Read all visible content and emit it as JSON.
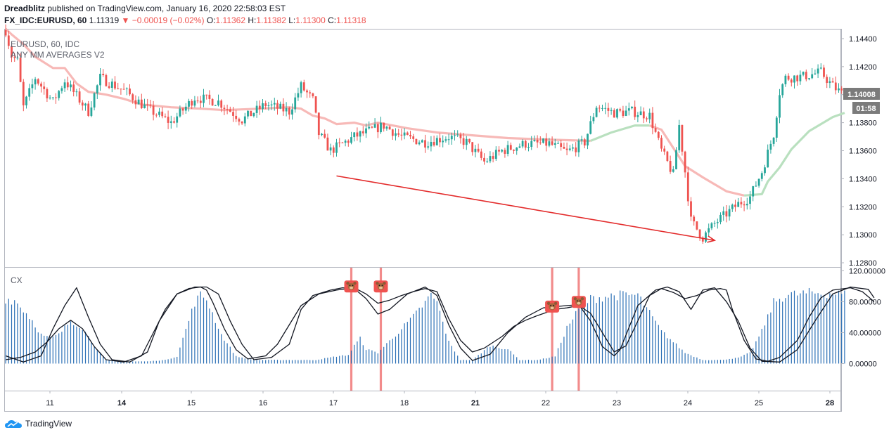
{
  "header": {
    "author": "Dreadblitz",
    "published_text": "published on TradingView.com, January 16, 2020 22:58:03 EST",
    "symbol": "FX_IDC:EURUSD, 60",
    "last": "1.11319",
    "change": "−0.00019 (−0.02%)",
    "o_label": "O:",
    "o_value": "1.11362",
    "h_label": "H:",
    "h_value": "1.11382",
    "l_label": "L:",
    "l_value": "1.11300",
    "c_label": "C:",
    "c_value": "1.11318"
  },
  "main_pane": {
    "symbol_label": "EURUSD, 60, IDC",
    "indicator_label": "ANY MM AVERAGES V2",
    "price_badge": "1.14008",
    "timer_badge": "01:58"
  },
  "lower_pane": {
    "label": "CX"
  },
  "footer": {
    "brand": "TradingView"
  },
  "colors": {
    "up": "#26a69a",
    "down": "#ef5350",
    "ma_down": "#f7b9b7",
    "ma_up": "#b9e0bf",
    "histogram": "#2a6fb5",
    "signal_line": "#f28b8b",
    "arrow": "#e32b2b",
    "badge_bg": "#7b7b7b"
  },
  "chart_data": [
    {
      "type": "candlestick",
      "y_ticks": [
        "1.14400",
        "1.14200",
        "1.14000",
        "1.13800",
        "1.13600",
        "1.13400",
        "1.13200",
        "1.13000",
        "1.12800"
      ],
      "ylim": [
        1.1277,
        1.1447
      ],
      "x_ticks": [
        "11",
        "14",
        "15",
        "16",
        "17",
        "18",
        "21",
        "22",
        "23",
        "24",
        "25",
        "28"
      ],
      "bold_x_ticks": [
        "14",
        "21",
        "28"
      ],
      "close_path": [
        [
          0,
          1.1446
        ],
        [
          2,
          1.1428
        ],
        [
          4,
          1.1424
        ],
        [
          6,
          1.1391
        ],
        [
          10,
          1.1412
        ],
        [
          16,
          1.1395
        ],
        [
          20,
          1.141
        ],
        [
          28,
          1.1388
        ],
        [
          32,
          1.1412
        ],
        [
          40,
          1.1403
        ],
        [
          48,
          1.139
        ],
        [
          56,
          1.138
        ],
        [
          64,
          1.1398
        ],
        [
          72,
          1.1395
        ],
        [
          80,
          1.1382
        ],
        [
          88,
          1.1393
        ],
        [
          96,
          1.1388
        ],
        [
          100,
          1.1406
        ],
        [
          104,
          1.1396
        ],
        [
          106,
          1.1372
        ],
        [
          110,
          1.136
        ],
        [
          118,
          1.137
        ],
        [
          128,
          1.1378
        ],
        [
          134,
          1.137
        ],
        [
          142,
          1.1366
        ],
        [
          150,
          1.137
        ],
        [
          156,
          1.1366
        ],
        [
          162,
          1.1352
        ],
        [
          168,
          1.136
        ],
        [
          176,
          1.1365
        ],
        [
          184,
          1.1365
        ],
        [
          190,
          1.1359
        ],
        [
          196,
          1.1366
        ],
        [
          200,
          1.1392
        ],
        [
          206,
          1.1387
        ],
        [
          212,
          1.1388
        ],
        [
          218,
          1.1385
        ],
        [
          222,
          1.136
        ],
        [
          226,
          1.1343
        ],
        [
          228,
          1.1378
        ],
        [
          230,
          1.1345
        ],
        [
          232,
          1.131
        ],
        [
          236,
          1.1298
        ],
        [
          240,
          1.1308
        ],
        [
          244,
          1.1315
        ],
        [
          248,
          1.1322
        ],
        [
          252,
          1.1327
        ],
        [
          256,
          1.1345
        ],
        [
          260,
          1.1372
        ],
        [
          262,
          1.1402
        ],
        [
          264,
          1.1412
        ],
        [
          270,
          1.1413
        ],
        [
          276,
          1.1416
        ],
        [
          280,
          1.1406
        ],
        [
          283,
          1.1401
        ]
      ],
      "ma_segments": [
        {
          "color": "down",
          "points": [
            [
              0,
              1.1447
            ],
            [
              2,
              1.1443
            ],
            [
              6,
              1.1436
            ],
            [
              10,
              1.1427
            ],
            [
              16,
              1.1419
            ],
            [
              20,
              1.1419
            ],
            [
              24,
              1.1408
            ],
            [
              28,
              1.1402
            ],
            [
              34,
              1.14
            ],
            [
              40,
              1.1397
            ],
            [
              46,
              1.1393
            ],
            [
              56,
              1.1391
            ],
            [
              66,
              1.139
            ],
            [
              74,
              1.1389
            ],
            [
              86,
              1.139
            ],
            [
              96,
              1.1391
            ],
            [
              100,
              1.139
            ],
            [
              104,
              1.1385
            ],
            [
              108,
              1.1383
            ],
            [
              112,
              1.1379
            ],
            [
              118,
              1.138
            ],
            [
              122,
              1.1378
            ],
            [
              126,
              1.138
            ],
            [
              136,
              1.1376
            ],
            [
              146,
              1.1373
            ],
            [
              158,
              1.1371
            ],
            [
              170,
              1.1369
            ],
            [
              182,
              1.1368
            ],
            [
              198,
              1.1367
            ]
          ]
        },
        {
          "color": "up",
          "points": [
            [
              198,
              1.1367
            ],
            [
              205,
              1.1373
            ],
            [
              213,
              1.1378
            ],
            [
              218,
              1.1378
            ]
          ]
        },
        {
          "color": "down",
          "points": [
            [
              218,
              1.1378
            ],
            [
              222,
              1.1375
            ],
            [
              226,
              1.1362
            ],
            [
              230,
              1.1349
            ],
            [
              236,
              1.1341
            ],
            [
              244,
              1.1331
            ],
            [
              250,
              1.1328
            ]
          ]
        },
        {
          "color": "up",
          "points": [
            [
              250,
              1.1328
            ],
            [
              256,
              1.1329
            ],
            [
              258,
              1.1338
            ],
            [
              262,
              1.1348
            ],
            [
              266,
              1.1361
            ],
            [
              272,
              1.1374
            ],
            [
              280,
              1.1384
            ],
            [
              284,
              1.1387
            ]
          ]
        }
      ],
      "annotation": {
        "type": "arrow",
        "from": [
          112,
          1.1342
        ],
        "to": [
          240,
          1.1296
        ]
      }
    },
    {
      "type": "oscillator",
      "y_ticks": [
        "120.00000",
        "80.00000",
        "40.00000",
        "0.00000"
      ],
      "ylim": [
        -35,
        124
      ],
      "histogram_path": [
        [
          0,
          90
        ],
        [
          3,
          88
        ],
        [
          6,
          75
        ],
        [
          9,
          60
        ],
        [
          12,
          40
        ],
        [
          15,
          35
        ],
        [
          18,
          40
        ],
        [
          22,
          60
        ],
        [
          26,
          50
        ],
        [
          30,
          25
        ],
        [
          34,
          5
        ],
        [
          40,
          3
        ],
        [
          48,
          3
        ],
        [
          54,
          5
        ],
        [
          58,
          10
        ],
        [
          60,
          35
        ],
        [
          64,
          85
        ],
        [
          66,
          95
        ],
        [
          68,
          90
        ],
        [
          70,
          70
        ],
        [
          73,
          40
        ],
        [
          78,
          10
        ],
        [
          84,
          5
        ],
        [
          95,
          5
        ],
        [
          105,
          5
        ],
        [
          112,
          10
        ],
        [
          116,
          12
        ],
        [
          118,
          25
        ],
        [
          120,
          35
        ],
        [
          122,
          20
        ],
        [
          126,
          15
        ],
        [
          132,
          40
        ],
        [
          138,
          65
        ],
        [
          142,
          85
        ],
        [
          144,
          95
        ],
        [
          146,
          85
        ],
        [
          150,
          30
        ],
        [
          154,
          5
        ],
        [
          158,
          5
        ],
        [
          164,
          25
        ],
        [
          170,
          20
        ],
        [
          174,
          5
        ],
        [
          180,
          5
        ],
        [
          186,
          10
        ],
        [
          190,
          50
        ],
        [
          194,
          75
        ],
        [
          198,
          90
        ],
        [
          206,
          95
        ],
        [
          214,
          95
        ],
        [
          218,
          70
        ],
        [
          222,
          45
        ],
        [
          226,
          30
        ],
        [
          230,
          15
        ],
        [
          236,
          5
        ],
        [
          242,
          5
        ],
        [
          248,
          8
        ],
        [
          252,
          15
        ],
        [
          256,
          45
        ],
        [
          260,
          85
        ],
        [
          264,
          95
        ],
        [
          272,
          98
        ],
        [
          280,
          98
        ],
        [
          284,
          96
        ]
      ],
      "line_a": [
        [
          0,
          5
        ],
        [
          5,
          8
        ],
        [
          10,
          15
        ],
        [
          14,
          28
        ],
        [
          18,
          45
        ],
        [
          22,
          56
        ],
        [
          26,
          45
        ],
        [
          30,
          22
        ],
        [
          34,
          5
        ],
        [
          40,
          2
        ],
        [
          46,
          10
        ],
        [
          50,
          40
        ],
        [
          54,
          70
        ],
        [
          58,
          90
        ],
        [
          62,
          97
        ],
        [
          66,
          99
        ],
        [
          68,
          95
        ],
        [
          70,
          80
        ],
        [
          74,
          45
        ],
        [
          78,
          18
        ],
        [
          82,
          6
        ],
        [
          88,
          10
        ],
        [
          92,
          25
        ],
        [
          96,
          50
        ],
        [
          100,
          75
        ],
        [
          106,
          90
        ],
        [
          112,
          95
        ],
        [
          118,
          98
        ],
        [
          122,
          90
        ],
        [
          126,
          78
        ],
        [
          130,
          82
        ],
        [
          134,
          88
        ],
        [
          138,
          93
        ],
        [
          142,
          97
        ],
        [
          146,
          93
        ],
        [
          150,
          58
        ],
        [
          154,
          30
        ],
        [
          158,
          15
        ],
        [
          162,
          20
        ],
        [
          168,
          35
        ],
        [
          172,
          48
        ],
        [
          176,
          56
        ],
        [
          180,
          62
        ],
        [
          186,
          70
        ],
        [
          190,
          72
        ],
        [
          194,
          75
        ],
        [
          198,
          65
        ],
        [
          202,
          40
        ],
        [
          206,
          15
        ],
        [
          210,
          23
        ],
        [
          214,
          55
        ],
        [
          218,
          88
        ],
        [
          222,
          97
        ],
        [
          226,
          92
        ],
        [
          230,
          84
        ],
        [
          234,
          88
        ],
        [
          238,
          95
        ],
        [
          242,
          97
        ],
        [
          244,
          95
        ],
        [
          246,
          70
        ],
        [
          250,
          30
        ],
        [
          254,
          6
        ],
        [
          258,
          3
        ],
        [
          262,
          8
        ],
        [
          268,
          30
        ],
        [
          272,
          60
        ],
        [
          276,
          85
        ],
        [
          280,
          95
        ],
        [
          286,
          98
        ],
        [
          290,
          93
        ],
        [
          294,
          80
        ]
      ],
      "line_b": [
        [
          0,
          10
        ],
        [
          6,
          2
        ],
        [
          12,
          10
        ],
        [
          16,
          45
        ],
        [
          20,
          75
        ],
        [
          24,
          98
        ],
        [
          28,
          60
        ],
        [
          32,
          25
        ],
        [
          36,
          5
        ],
        [
          42,
          2
        ],
        [
          48,
          15
        ],
        [
          52,
          55
        ],
        [
          58,
          90
        ],
        [
          64,
          99
        ],
        [
          68,
          99
        ],
        [
          72,
          90
        ],
        [
          76,
          55
        ],
        [
          80,
          25
        ],
        [
          84,
          5
        ],
        [
          90,
          8
        ],
        [
          96,
          25
        ],
        [
          100,
          70
        ],
        [
          104,
          88
        ],
        [
          110,
          95
        ],
        [
          114,
          98
        ],
        [
          118,
          97
        ],
        [
          122,
          84
        ],
        [
          126,
          64
        ],
        [
          130,
          70
        ],
        [
          136,
          90
        ],
        [
          142,
          99
        ],
        [
          146,
          88
        ],
        [
          150,
          50
        ],
        [
          154,
          20
        ],
        [
          158,
          4
        ],
        [
          164,
          12
        ],
        [
          170,
          40
        ],
        [
          176,
          60
        ],
        [
          182,
          72
        ],
        [
          190,
          75
        ],
        [
          194,
          76
        ],
        [
          198,
          55
        ],
        [
          202,
          22
        ],
        [
          206,
          10
        ],
        [
          208,
          18
        ],
        [
          214,
          75
        ],
        [
          220,
          95
        ],
        [
          224,
          99
        ],
        [
          228,
          93
        ],
        [
          232,
          70
        ],
        [
          236,
          95
        ],
        [
          240,
          98
        ],
        [
          244,
          80
        ],
        [
          248,
          55
        ],
        [
          252,
          20
        ],
        [
          256,
          3
        ],
        [
          262,
          2
        ],
        [
          268,
          18
        ],
        [
          274,
          55
        ],
        [
          280,
          90
        ],
        [
          286,
          99
        ],
        [
          292,
          96
        ],
        [
          294,
          85
        ]
      ],
      "signal_markers": [
        {
          "x": 117,
          "value": 92
        },
        {
          "x": 127,
          "value": 92
        },
        {
          "x": 185,
          "value": 66
        },
        {
          "x": 194,
          "value": 72
        }
      ]
    }
  ]
}
